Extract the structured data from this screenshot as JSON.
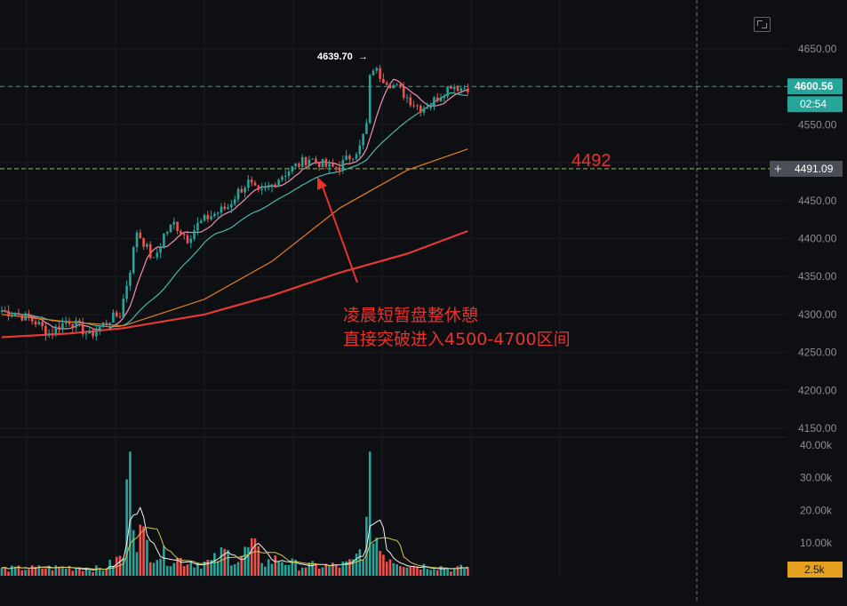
{
  "chart_data": {
    "type": "candlestick",
    "price_axis": {
      "ticks": [
        "4650.00",
        "4600.00",
        "4550.00",
        "4500.00",
        "4450.00",
        "4400.00",
        "4350.00",
        "4300.00",
        "4250.00",
        "4200.00",
        "4150.00"
      ],
      "range": [
        4130,
        4660
      ]
    },
    "volume_axis": {
      "ticks": [
        "40.00k",
        "30.00k",
        "20.00k",
        "10.00k"
      ],
      "range": [
        0,
        40000
      ]
    },
    "last_price": {
      "value": "4600.56",
      "countdown": "02:54"
    },
    "crosshair_price": "4491.09",
    "current_volume": "2.5k",
    "high_marker": {
      "label": "4639.70",
      "arrow": "→",
      "value": 4639.7
    },
    "horizontal_line": {
      "value": 4492,
      "label": "4492"
    },
    "annotation": {
      "line1": "凌晨短暂盘整休憩",
      "line2": "直接突破进入4500-4700区间"
    },
    "colors": {
      "up": "#26a69a",
      "down": "#ef5350",
      "ma_short": "#f48fb1",
      "ma_mid": "#4db6ac",
      "ma_long": "#e67e22",
      "ma_longest": "#e53935",
      "annotation": "#e8322d"
    },
    "ohlc_close_path": [
      [
        0,
        4305
      ],
      [
        5,
        4300
      ],
      [
        10,
        4290
      ],
      [
        14,
        4275
      ],
      [
        17,
        4285
      ],
      [
        20,
        4292
      ],
      [
        23,
        4283
      ],
      [
        26,
        4272
      ],
      [
        29,
        4283
      ],
      [
        32,
        4294
      ],
      [
        35,
        4300
      ],
      [
        38,
        4360
      ],
      [
        40,
        4410
      ],
      [
        42,
        4395
      ],
      [
        45,
        4370
      ],
      [
        48,
        4405
      ],
      [
        51,
        4420
      ],
      [
        55,
        4400
      ],
      [
        58,
        4418
      ],
      [
        61,
        4428
      ],
      [
        64,
        4435
      ],
      [
        67,
        4442
      ],
      [
        70,
        4462
      ],
      [
        73,
        4474
      ],
      [
        76,
        4458
      ],
      [
        79,
        4466
      ],
      [
        82,
        4480
      ],
      [
        85,
        4490
      ],
      [
        88,
        4498
      ],
      [
        91,
        4506
      ],
      [
        94,
        4500
      ],
      [
        97,
        4493
      ],
      [
        100,
        4495
      ],
      [
        103,
        4508
      ],
      [
        106,
        4520
      ],
      [
        108,
        4550
      ],
      [
        109,
        4610
      ],
      [
        110,
        4625
      ],
      [
        112,
        4615
      ],
      [
        115,
        4605
      ],
      [
        118,
        4595
      ],
      [
        121,
        4582
      ],
      [
        124,
        4572
      ],
      [
        127,
        4578
      ],
      [
        130,
        4590
      ],
      [
        133,
        4603
      ],
      [
        136,
        4598
      ],
      [
        138,
        4600
      ]
    ],
    "volume_profile": [
      [
        0,
        2
      ],
      [
        20,
        2.5
      ],
      [
        30,
        2
      ],
      [
        36,
        6
      ],
      [
        38,
        38
      ],
      [
        39,
        22
      ],
      [
        40,
        14
      ],
      [
        44,
        8
      ],
      [
        48,
        6
      ],
      [
        52,
        5
      ],
      [
        58,
        4
      ],
      [
        62,
        4
      ],
      [
        66,
        7
      ],
      [
        70,
        5
      ],
      [
        74,
        9
      ],
      [
        78,
        4
      ],
      [
        82,
        5
      ],
      [
        88,
        3
      ],
      [
        94,
        3
      ],
      [
        100,
        3
      ],
      [
        104,
        4
      ],
      [
        107,
        9
      ],
      [
        108,
        14
      ],
      [
        109,
        38
      ],
      [
        110,
        16
      ],
      [
        112,
        8
      ],
      [
        116,
        5
      ],
      [
        122,
        3
      ],
      [
        128,
        3
      ],
      [
        134,
        2
      ],
      [
        138,
        2.5
      ]
    ]
  }
}
